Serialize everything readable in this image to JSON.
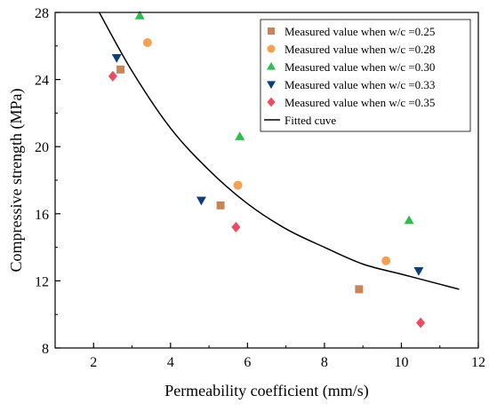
{
  "chart_data": {
    "type": "scatter",
    "xlabel": "Permeability coefficient (mm/s)",
    "ylabel": "Compressive strength (MPa)",
    "xlim": [
      1,
      12
    ],
    "ylim": [
      8,
      28
    ],
    "xticks": [
      2,
      4,
      6,
      8,
      10,
      12
    ],
    "yticks": [
      8,
      12,
      16,
      20,
      24,
      28
    ],
    "grid": false,
    "legend_position": "top-right",
    "series": [
      {
        "name": "Measured value when w/c =0.25",
        "marker": "square",
        "color": "#c8845a",
        "x": [
          2.7,
          5.3,
          8.9
        ],
        "y": [
          24.6,
          16.5,
          11.5
        ]
      },
      {
        "name": "Measured value when w/c =0.28",
        "marker": "circle",
        "color": "#f5a052",
        "x": [
          3.4,
          5.75,
          9.6
        ],
        "y": [
          26.2,
          17.7,
          13.2
        ]
      },
      {
        "name": "Measured value when w/c =0.30",
        "marker": "triangle-up",
        "color": "#2ebd4a",
        "x": [
          3.2,
          5.8,
          10.2
        ],
        "y": [
          27.8,
          20.6,
          15.6
        ]
      },
      {
        "name": "Measured value when w/c =0.33",
        "marker": "triangle-down",
        "color": "#0c3e7a",
        "x": [
          2.6,
          4.8,
          10.45
        ],
        "y": [
          25.3,
          16.8,
          12.6
        ]
      },
      {
        "name": "Measured value when w/c =0.35",
        "marker": "diamond",
        "color": "#ee4a62",
        "x": [
          2.5,
          5.7,
          10.5
        ],
        "y": [
          24.2,
          15.2,
          9.5
        ]
      }
    ],
    "fitted_curve": {
      "name": "Fitted cuve",
      "color": "#000000",
      "x": [
        2.1,
        3.0,
        4.0,
        5.0,
        6.0,
        7.0,
        8.0,
        9.0,
        10.0,
        11.0,
        11.5
      ],
      "y": [
        28.2,
        24.5,
        21.1,
        18.6,
        16.6,
        15.1,
        14.0,
        13.0,
        12.4,
        11.8,
        11.5
      ]
    }
  }
}
